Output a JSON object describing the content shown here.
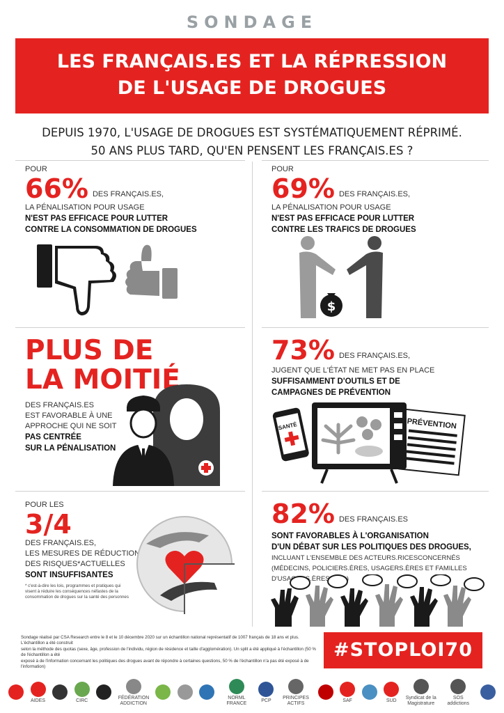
{
  "header": {
    "kicker": "SONDAGE",
    "title_line1": "LES FRANÇAIS.ES ET LA RÉPRESSION",
    "title_line2": "DE L'USAGE DE DROGUES"
  },
  "intro": {
    "line1": "DEPUIS 1970, L'USAGE DE DROGUES EST SYSTÉMATIQUEMENT RÉPRIMÉ.",
    "line2": "50 ANS PLUS TARD, QU'EN PENSENT LES FRANÇAIS.ES ?"
  },
  "blocks": {
    "b1": {
      "pre": "POUR",
      "stat": "66%",
      "after": "DES FRANÇAIS.ES,",
      "line2": "LA PÉNALISATION POUR USAGE",
      "bold1": "N'EST PAS EFFICACE POUR LUTTER",
      "bold2": "CONTRE LA CONSOMMATION DE DROGUES"
    },
    "b2": {
      "pre": "POUR",
      "stat": "69%",
      "after": "DES FRANÇAIS.ES,",
      "line2": "LA PÉNALISATION POUR USAGE",
      "bold1": "N'EST PAS EFFICACE POUR LUTTER",
      "bold2": "CONTRE LES TRAFICS DE DROGUES"
    },
    "b3": {
      "stat1": "PLUS DE",
      "stat2": "LA MOITIÉ",
      "l1": "DES FRANÇAIS.ES",
      "l2": "EST FAVORABLE À UNE",
      "l3": "APPROCHE QUI NE SOIT",
      "bold1": "PAS CENTRÉE",
      "bold2": "SUR LA PÉNALISATION"
    },
    "b4": {
      "stat": "73%",
      "after": "DES FRANÇAIS.ES,",
      "line2": "JUGENT QUE L'ÉTAT NE MET PAS EN PLACE",
      "bold1": "SUFFISAMMENT D'OUTILS ET DE",
      "bold2": "CAMPAGNES DE PRÉVENTION",
      "phone_label": "SANTÉ",
      "paper_label": "PRÉVENTION"
    },
    "b5": {
      "pre": "POUR LES",
      "stat": "3/4",
      "after": "DES FRANÇAIS.ES,",
      "l2": "LES MESURES DE RÉDUCTION",
      "l3": "DES RISQUES*ACTUELLES",
      "bold1": "SONT INSUFFISANTES",
      "note1": "* c'est-à-dire les lois, programmes et pratiques qui",
      "note2": "visent à réduire les conséquences néfastes de la",
      "note3": "consommation de drogues sur la santé des personnes"
    },
    "b6": {
      "stat": "82%",
      "after": "DES FRANÇAIS.ES",
      "bold1": "SONT FAVORABLES À L'ORGANISATION",
      "bold2": "D'UN DÉBAT SUR LES POLITIQUES DES DROGUES,",
      "l3": "INCLUANT L'ENSEMBLE DES ACTEURS.RICESCONCERNÉS",
      "l4": "(MÉDECINS, POLICIERS.ÈRES, USAGERS.ÈRES ET FAMILLES D'USAGERS.ÈRES ETC.)"
    }
  },
  "footnote": {
    "l1": "Sondage réalisé par CSA Research entre le 8 et le 10 décembre 2020 sur un échantillon national représentatif de 1007 français de 18 ans et plus. L'échantillon a été construit",
    "l2": "selon la méthode des quotas (sexe, âge, profession de l'individu, région de résidence et taille d'agglomération). Un split a été appliqué à l'échantillon (50 % de l'échantillon a été",
    "l3": "exposé à de l'information concernant les politiques des drogues avant de répondre à certaines questions, 50 % de l'échantillon n'a pas été exposé à de l'information)"
  },
  "hashtag": "#STOPLOI70",
  "logos": [
    {
      "name": "",
      "color": "#e42320"
    },
    {
      "name": "AIDES",
      "color": "#e42320"
    },
    {
      "name": "",
      "color": "#333333"
    },
    {
      "name": "CIRC",
      "color": "#6aa84f"
    },
    {
      "name": "",
      "color": "#222222"
    },
    {
      "name": "FÉDÉRATION ADDICTION",
      "color": "#888888"
    },
    {
      "name": "",
      "color": "#7ab648"
    },
    {
      "name": "",
      "color": "#999999"
    },
    {
      "name": "",
      "color": "#2f75b5"
    },
    {
      "name": "NORML FRANCE",
      "color": "#2e8b57"
    },
    {
      "name": "PCP",
      "color": "#2f5597"
    },
    {
      "name": "PRINCIPES ACTIFS",
      "color": "#666666"
    },
    {
      "name": "",
      "color": "#c00000"
    },
    {
      "name": "SAF",
      "color": "#e42320"
    },
    {
      "name": "",
      "color": "#4a90c2"
    },
    {
      "name": "SUD",
      "color": "#e42320"
    },
    {
      "name": "Syndicat de la Magistrature",
      "color": "#555555"
    },
    {
      "name": "SOS addictions",
      "color": "#555555"
    },
    {
      "name": "",
      "color": "#3a5fa0"
    }
  ],
  "colors": {
    "accent": "#e42320",
    "grey_dark": "#3c3c3c",
    "grey_mid": "#8a8a8a",
    "grey_light": "#b9b9b9"
  }
}
